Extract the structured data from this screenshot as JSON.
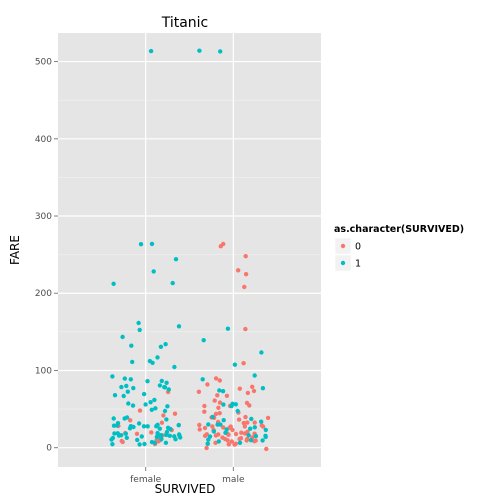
{
  "chart_data": {
    "type": "scatter",
    "title": "Titanic",
    "xlabel": "SURVIVED",
    "ylabel": "FARE",
    "categories": [
      "female",
      "male"
    ],
    "ylim": [
      -25,
      537
    ],
    "yticks": [
      0,
      100,
      200,
      300,
      400,
      500
    ],
    "jitter": true,
    "grid": true,
    "legend": {
      "title": "as.character(SURVIVED)",
      "placement": "right",
      "entries": [
        {
          "label": "0",
          "color": "#F8766D"
        },
        {
          "label": "1",
          "color": "#00BFC4"
        }
      ]
    },
    "series": [
      {
        "name": "0",
        "color": "#F8766D",
        "points": [
          [
            "female",
            7.9
          ],
          [
            "female",
            8.7
          ],
          [
            "female",
            9.5
          ],
          [
            "female",
            10.5
          ],
          [
            "female",
            12.3
          ],
          [
            "female",
            14.5
          ],
          [
            "female",
            15.2
          ],
          [
            "female",
            17.8
          ],
          [
            "female",
            21.1
          ],
          [
            "female",
            25.5
          ],
          [
            "female",
            27.9
          ],
          [
            "female",
            31.3
          ],
          [
            "female",
            34.4
          ],
          [
            "female",
            46.9
          ],
          [
            "female",
            47.5
          ],
          [
            "female",
            69.6
          ],
          [
            "female",
            7.3
          ],
          [
            "female",
            18.0
          ],
          [
            "female",
            29.1
          ],
          [
            "female",
            39.7
          ],
          [
            "male",
            7.25
          ],
          [
            "male",
            7.75
          ],
          [
            "male",
            7.9
          ],
          [
            "male",
            8.05
          ],
          [
            "male",
            8.05
          ],
          [
            "male",
            8.66
          ],
          [
            "male",
            9.5
          ],
          [
            "male",
            10.5
          ],
          [
            "male",
            13.0
          ],
          [
            "male",
            13.0
          ],
          [
            "male",
            13.0
          ],
          [
            "male",
            14.5
          ],
          [
            "male",
            15.5
          ],
          [
            "male",
            16.1
          ],
          [
            "male",
            18.0
          ],
          [
            "male",
            20.5
          ],
          [
            "male",
            21.0
          ],
          [
            "male",
            24.15
          ],
          [
            "male",
            26.0
          ],
          [
            "male",
            26.0
          ],
          [
            "male",
            26.55
          ],
          [
            "male",
            27.7
          ],
          [
            "male",
            29.7
          ],
          [
            "male",
            30.5
          ],
          [
            "male",
            31.0
          ],
          [
            "male",
            34.0
          ],
          [
            "male",
            35.5
          ],
          [
            "male",
            38.5
          ],
          [
            "male",
            39.7
          ],
          [
            "male",
            42.4
          ],
          [
            "male",
            46.9
          ],
          [
            "male",
            50.0
          ],
          [
            "male",
            52.0
          ],
          [
            "male",
            56.5
          ],
          [
            "male",
            61.2
          ],
          [
            "male",
            63.4
          ],
          [
            "male",
            66.6
          ],
          [
            "male",
            71.0
          ],
          [
            "male",
            73.5
          ],
          [
            "male",
            77.3
          ],
          [
            "male",
            79.2
          ],
          [
            "male",
            83.2
          ],
          [
            "male",
            90.0
          ],
          [
            "male",
            110.9
          ],
          [
            "male",
            153.5
          ],
          [
            "male",
            211.5
          ],
          [
            "male",
            221.8
          ],
          [
            "male",
            227.5
          ],
          [
            "male",
            247.5
          ],
          [
            "male",
            262.4
          ],
          [
            "male",
            263.0
          ],
          [
            "male",
            5.0
          ],
          [
            "male",
            0.0
          ],
          [
            "male",
            0.0
          ],
          [
            "male",
            6.5
          ],
          [
            "male",
            7.05
          ],
          [
            "male",
            7.8
          ],
          [
            "male",
            8.3
          ],
          [
            "male",
            9.2
          ],
          [
            "male",
            11.5
          ],
          [
            "male",
            12.5
          ],
          [
            "male",
            14.4
          ],
          [
            "male",
            15.0
          ],
          [
            "male",
            19.5
          ],
          [
            "male",
            22.5
          ],
          [
            "male",
            25.9
          ],
          [
            "male",
            28.5
          ],
          [
            "male",
            30.0
          ],
          [
            "male",
            36.8
          ],
          [
            "male",
            40.1
          ],
          [
            "male",
            45.5
          ],
          [
            "male",
            47.1
          ],
          [
            "male",
            51.9
          ],
          [
            "male",
            55.0
          ],
          [
            "male",
            59.4
          ],
          [
            "male",
            65.0
          ],
          [
            "male",
            75.2
          ],
          [
            "male",
            81.9
          ],
          [
            "male",
            26.3
          ],
          [
            "male",
            33.5
          ]
        ]
      },
      {
        "name": "1",
        "color": "#00BFC4",
        "points": [
          [
            "female",
            512.3
          ],
          [
            "female",
            263.0
          ],
          [
            "female",
            262.4
          ],
          [
            "female",
            247.5
          ],
          [
            "female",
            227.5
          ],
          [
            "female",
            211.3
          ],
          [
            "female",
            211.5
          ],
          [
            "female",
            164.9
          ],
          [
            "female",
            153.5
          ],
          [
            "female",
            151.6
          ],
          [
            "female",
            146.5
          ],
          [
            "female",
            135.6
          ],
          [
            "female",
            134.5
          ],
          [
            "female",
            133.7
          ],
          [
            "female",
            120.0
          ],
          [
            "female",
            113.3
          ],
          [
            "female",
            110.9
          ],
          [
            "female",
            108.9
          ],
          [
            "female",
            106.4
          ],
          [
            "female",
            93.5
          ],
          [
            "female",
            91.1
          ],
          [
            "female",
            90.0
          ],
          [
            "female",
            89.1
          ],
          [
            "female",
            86.5
          ],
          [
            "female",
            83.2
          ],
          [
            "female",
            82.2
          ],
          [
            "female",
            80.0
          ],
          [
            "female",
            79.7
          ],
          [
            "female",
            78.3
          ],
          [
            "female",
            77.9
          ],
          [
            "female",
            76.3
          ],
          [
            "female",
            75.3
          ],
          [
            "female",
            71.3
          ],
          [
            "female",
            69.3
          ],
          [
            "female",
            66.6
          ],
          [
            "female",
            65.0
          ],
          [
            "female",
            63.4
          ],
          [
            "female",
            59.4
          ],
          [
            "female",
            57.0
          ],
          [
            "female",
            55.9
          ],
          [
            "female",
            53.1
          ],
          [
            "female",
            52.0
          ],
          [
            "female",
            51.5
          ],
          [
            "female",
            49.5
          ],
          [
            "female",
            46.9
          ],
          [
            "female",
            41.6
          ],
          [
            "female",
            39.0
          ],
          [
            "female",
            36.8
          ],
          [
            "female",
            33.0
          ],
          [
            "female",
            31.3
          ],
          [
            "female",
            30.5
          ],
          [
            "female",
            29.1
          ],
          [
            "female",
            27.7
          ],
          [
            "female",
            26.3
          ],
          [
            "female",
            26.0
          ],
          [
            "female",
            25.9
          ],
          [
            "female",
            24.0
          ],
          [
            "female",
            23.0
          ],
          [
            "female",
            22.4
          ],
          [
            "female",
            21.0
          ],
          [
            "female",
            19.3
          ],
          [
            "female",
            18.8
          ],
          [
            "female",
            16.7
          ],
          [
            "female",
            16.1
          ],
          [
            "female",
            15.5
          ],
          [
            "female",
            15.2
          ],
          [
            "female",
            14.5
          ],
          [
            "female",
            13.9
          ],
          [
            "female",
            13.0
          ],
          [
            "female",
            12.5
          ],
          [
            "female",
            11.1
          ],
          [
            "female",
            10.5
          ],
          [
            "female",
            9.8
          ],
          [
            "female",
            8.5
          ],
          [
            "female",
            7.9
          ],
          [
            "female",
            7.7
          ],
          [
            "female",
            7.2
          ],
          [
            "female",
            7.0
          ],
          [
            "female",
            26.0
          ],
          [
            "female",
            13.0
          ],
          [
            "female",
            7.75
          ],
          [
            "female",
            10.5
          ],
          [
            "female",
            23.25
          ],
          [
            "female",
            26.25
          ],
          [
            "female",
            30.0
          ],
          [
            "female",
            12.3
          ],
          [
            "female",
            8.05
          ],
          [
            "female",
            20.0
          ],
          [
            "female",
            14.0
          ],
          [
            "female",
            7.65
          ],
          [
            "female",
            39.4
          ],
          [
            "female",
            27.0
          ],
          [
            "female",
            18.0
          ],
          [
            "female",
            15.0
          ],
          [
            "male",
            512.3
          ],
          [
            "male",
            512.3
          ],
          [
            "male",
            153.5
          ],
          [
            "male",
            135.6
          ],
          [
            "male",
            120.0
          ],
          [
            "male",
            110.9
          ],
          [
            "male",
            91.1
          ],
          [
            "male",
            86.5
          ],
          [
            "male",
            79.2
          ],
          [
            "male",
            76.7
          ],
          [
            "male",
            71.0
          ],
          [
            "male",
            57.0
          ],
          [
            "male",
            56.5
          ],
          [
            "male",
            55.0
          ],
          [
            "male",
            52.5
          ],
          [
            "male",
            50.5
          ],
          [
            "male",
            40.1
          ],
          [
            "male",
            35.5
          ],
          [
            "male",
            30.5
          ],
          [
            "male",
            29.7
          ],
          [
            "male",
            26.3
          ],
          [
            "male",
            26.0
          ],
          [
            "male",
            23.0
          ],
          [
            "male",
            18.8
          ],
          [
            "male",
            15.5
          ],
          [
            "male",
            13.0
          ],
          [
            "male",
            11.1
          ],
          [
            "male",
            8.05
          ],
          [
            "male",
            7.9
          ],
          [
            "male",
            7.75
          ],
          [
            "male",
            26.55
          ],
          [
            "male",
            13.0
          ],
          [
            "male",
            10.5
          ],
          [
            "male",
            8.1
          ],
          [
            "male",
            31.4
          ],
          [
            "male",
            14.5
          ],
          [
            "male",
            20.5
          ],
          [
            "male",
            39.0
          ],
          [
            "male",
            16.0
          ],
          [
            "male",
            25.9
          ]
        ]
      }
    ]
  }
}
